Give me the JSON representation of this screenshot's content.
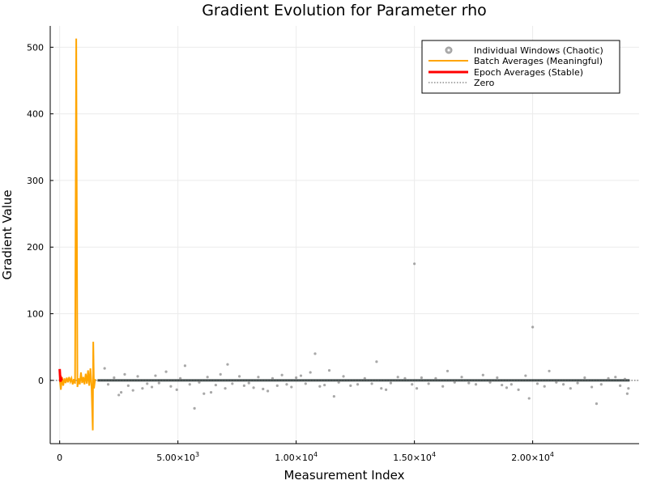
{
  "chart_data": {
    "type": "line",
    "title": "Gradient Evolution for Parameter rho",
    "xlabel": "Measurement Index",
    "ylabel": "Gradient Value",
    "xlim": [
      -400,
      24500
    ],
    "ylim": [
      -95,
      532
    ],
    "x_ticks": [
      {
        "value": 0,
        "label": "0"
      },
      {
        "value": 5000,
        "label": "5.00×10",
        "exp": "3"
      },
      {
        "value": 10000,
        "label": "1.00×10",
        "exp": "4"
      },
      {
        "value": 15000,
        "label": "1.50×10",
        "exp": "4"
      },
      {
        "value": 20000,
        "label": "2.00×10",
        "exp": "4"
      }
    ],
    "y_ticks": [
      0,
      100,
      200,
      300,
      400,
      500
    ],
    "grid": true,
    "legend_position": "top-right",
    "legend": [
      {
        "label": "Individual Windows (Chaotic)",
        "style": "scatter",
        "color": "#9a9a9a"
      },
      {
        "label": "Batch Averages (Meaningful)",
        "style": "line",
        "color": "#ffa500"
      },
      {
        "label": "Epoch Averages (Stable)",
        "style": "line",
        "color": "#ff0000"
      },
      {
        "label": "Zero",
        "style": "dotted",
        "color": "#555555"
      }
    ],
    "series": [
      {
        "name": "Individual Windows (Chaotic)",
        "kind": "scatter",
        "color": "#7a7a7a",
        "points": [
          [
            1900,
            18
          ],
          [
            2050,
            -6
          ],
          [
            2300,
            4
          ],
          [
            2500,
            -22
          ],
          [
            2600,
            -18
          ],
          [
            2750,
            9
          ],
          [
            2900,
            -8
          ],
          [
            3100,
            -15
          ],
          [
            3300,
            6
          ],
          [
            3500,
            -12
          ],
          [
            3700,
            -5
          ],
          [
            3900,
            -10
          ],
          [
            4050,
            7
          ],
          [
            4200,
            -4
          ],
          [
            4500,
            13
          ],
          [
            4700,
            -9
          ],
          [
            4950,
            -14
          ],
          [
            5100,
            3
          ],
          [
            5300,
            22
          ],
          [
            5500,
            -6
          ],
          [
            5700,
            -42
          ],
          [
            5900,
            -3
          ],
          [
            6100,
            -20
          ],
          [
            6250,
            5
          ],
          [
            6400,
            -18
          ],
          [
            6600,
            -7
          ],
          [
            6800,
            9
          ],
          [
            7000,
            -12
          ],
          [
            7100,
            24
          ],
          [
            7300,
            -5
          ],
          [
            7600,
            6
          ],
          [
            7800,
            -8
          ],
          [
            8000,
            -4
          ],
          [
            8200,
            -11
          ],
          [
            8400,
            5
          ],
          [
            8600,
            -13
          ],
          [
            8800,
            -16
          ],
          [
            9000,
            3
          ],
          [
            9200,
            -8
          ],
          [
            9400,
            8
          ],
          [
            9600,
            -6
          ],
          [
            9800,
            -10
          ],
          [
            10000,
            4
          ],
          [
            10200,
            7
          ],
          [
            10400,
            -5
          ],
          [
            10600,
            12
          ],
          [
            10800,
            40
          ],
          [
            11000,
            -9
          ],
          [
            11200,
            -7
          ],
          [
            11400,
            15
          ],
          [
            11600,
            -24
          ],
          [
            11800,
            -3
          ],
          [
            12000,
            6
          ],
          [
            12300,
            -8
          ],
          [
            12600,
            -6
          ],
          [
            12900,
            3
          ],
          [
            13200,
            -5
          ],
          [
            13400,
            28
          ],
          [
            13600,
            -12
          ],
          [
            13800,
            -14
          ],
          [
            14000,
            -4
          ],
          [
            14300,
            5
          ],
          [
            14600,
            3
          ],
          [
            14900,
            -6
          ],
          [
            15000,
            175
          ],
          [
            15100,
            -12
          ],
          [
            15300,
            4
          ],
          [
            15600,
            -5
          ],
          [
            15900,
            3
          ],
          [
            16200,
            -9
          ],
          [
            16400,
            14
          ],
          [
            16700,
            -3
          ],
          [
            17000,
            5
          ],
          [
            17300,
            -4
          ],
          [
            17600,
            -6
          ],
          [
            17900,
            8
          ],
          [
            18200,
            -3
          ],
          [
            18500,
            4
          ],
          [
            18700,
            -7
          ],
          [
            18900,
            -11
          ],
          [
            19100,
            -6
          ],
          [
            19400,
            -14
          ],
          [
            19700,
            7
          ],
          [
            19850,
            -27
          ],
          [
            20000,
            80
          ],
          [
            20200,
            -5
          ],
          [
            20500,
            -9
          ],
          [
            20700,
            14
          ],
          [
            21000,
            -3
          ],
          [
            21300,
            -6
          ],
          [
            21600,
            -12
          ],
          [
            21900,
            -4
          ],
          [
            22200,
            4
          ],
          [
            22500,
            -10
          ],
          [
            22700,
            -35
          ],
          [
            22900,
            -6
          ],
          [
            23200,
            3
          ],
          [
            23500,
            5
          ],
          [
            23700,
            -8
          ],
          [
            23900,
            2
          ],
          [
            24000,
            -20
          ],
          [
            24050,
            -12
          ]
        ]
      },
      {
        "name": "Batch Averages (Meaningful)",
        "kind": "line",
        "color": "#ffa500",
        "points": [
          [
            0,
            2
          ],
          [
            50,
            -14
          ],
          [
            100,
            5
          ],
          [
            150,
            -8
          ],
          [
            200,
            3
          ],
          [
            250,
            -4
          ],
          [
            300,
            4
          ],
          [
            350,
            -3
          ],
          [
            400,
            5
          ],
          [
            450,
            -2
          ],
          [
            500,
            3
          ],
          [
            550,
            -6
          ],
          [
            600,
            2
          ],
          [
            650,
            -5
          ],
          [
            700,
            513
          ],
          [
            750,
            -10
          ],
          [
            800,
            3
          ],
          [
            850,
            -6
          ],
          [
            900,
            12
          ],
          [
            950,
            -4
          ],
          [
            1000,
            5
          ],
          [
            1050,
            -6
          ],
          [
            1100,
            10
          ],
          [
            1150,
            -5
          ],
          [
            1200,
            15
          ],
          [
            1250,
            -8
          ],
          [
            1300,
            18
          ],
          [
            1350,
            -12
          ],
          [
            1400,
            -75
          ],
          [
            1420,
            58
          ],
          [
            1450,
            -12
          ],
          [
            1500,
            2
          ]
        ]
      },
      {
        "name": "Epoch Averages (Stable)",
        "kind": "line",
        "color": "#ff0000",
        "points": [
          [
            0,
            17
          ],
          [
            30,
            -2
          ],
          [
            60,
            3
          ],
          [
            90,
            0
          ]
        ]
      }
    ]
  }
}
